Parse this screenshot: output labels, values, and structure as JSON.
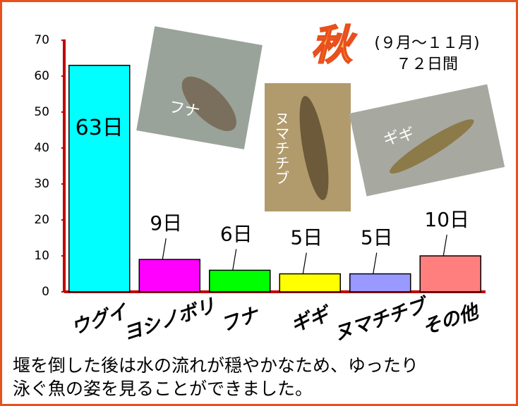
{
  "chart_data": {
    "type": "bar",
    "season": "秋",
    "period": "(９月～１１月)",
    "total": "７２日間",
    "categories": [
      "ウグイ",
      "ヨシノボリ",
      "フナ",
      "ギギ",
      "ヌマチチブ",
      "その他"
    ],
    "values": [
      63,
      9,
      6,
      5,
      5,
      10
    ],
    "value_labels": [
      "63日",
      "9日",
      "6日",
      "5日",
      "5日",
      "10日"
    ],
    "colors": [
      "#00ffff",
      "#ff00ff",
      "#00ff00",
      "#ffff00",
      "#9999ff",
      "#ff7f7f"
    ],
    "ylim": [
      0,
      70
    ],
    "yticks": [
      0,
      10,
      20,
      30,
      40,
      50,
      60,
      70
    ],
    "axis_color": "#c00000",
    "photos": [
      "フナ",
      "ヌマチチブ",
      "ギギ"
    ]
  },
  "caption": [
    "堰を倒した後は水の流れが穏やかなため、ゆったり",
    "泳ぐ魚の姿を見ることができました。"
  ]
}
